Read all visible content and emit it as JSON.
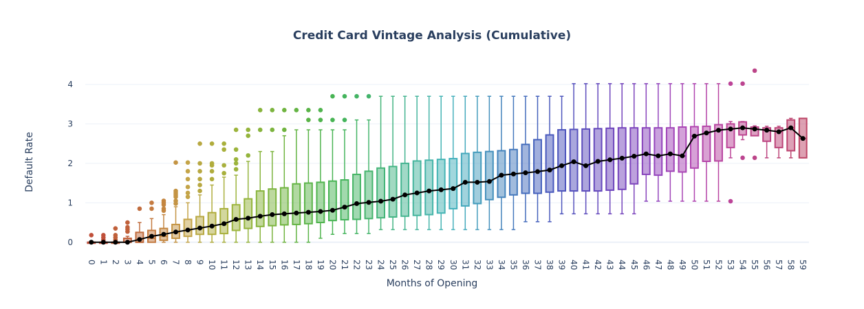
{
  "chart_data": {
    "type": "box",
    "title": "Credit Card Vintage Analysis (Cumulative)",
    "xlabel": "Months of Opening",
    "ylabel": "Default Rate",
    "ylim": [
      -0.3,
      4.4
    ],
    "yticks": [
      0,
      1,
      2,
      3,
      4
    ],
    "grid": true,
    "legend": "none",
    "categories": [
      "0",
      "1",
      "2",
      "3",
      "4",
      "5",
      "6",
      "7",
      "8",
      "9",
      "10",
      "11",
      "12",
      "13",
      "14",
      "15",
      "16",
      "17",
      "18",
      "19",
      "20",
      "21",
      "22",
      "23",
      "24",
      "25",
      "26",
      "27",
      "28",
      "29",
      "30",
      "31",
      "32",
      "33",
      "34",
      "35",
      "36",
      "37",
      "38",
      "39",
      "40",
      "41",
      "42",
      "43",
      "44",
      "45",
      "46",
      "47",
      "48",
      "49",
      "50",
      "51",
      "52",
      "53",
      "54",
      "55",
      "56",
      "57",
      "58",
      "59"
    ],
    "mean_series": {
      "color": "#000000",
      "values": [
        0,
        0,
        0,
        0,
        0.07,
        0.15,
        0.2,
        0.26,
        0.31,
        0.36,
        0.41,
        0.47,
        0.58,
        0.61,
        0.66,
        0.7,
        0.72,
        0.74,
        0.76,
        0.78,
        0.81,
        0.89,
        0.98,
        1.01,
        1.04,
        1.09,
        1.2,
        1.25,
        1.3,
        1.33,
        1.36,
        1.52,
        1.52,
        1.54,
        1.7,
        1.73,
        1.76,
        1.79,
        1.83,
        1.94,
        2.04,
        1.94,
        2.05,
        2.09,
        2.13,
        2.18,
        2.24,
        2.19,
        2.24,
        2.19,
        2.69,
        2.77,
        2.84,
        2.87,
        2.9,
        2.87,
        2.84,
        2.8,
        2.9,
        2.63
      ]
    },
    "boxes": [
      {
        "q1": 0,
        "median": 0,
        "q3": 0,
        "low": 0,
        "high": 0,
        "outliers": [
          0.18
        ],
        "color": "#c0503a"
      },
      {
        "q1": 0,
        "median": 0,
        "q3": 0,
        "low": 0,
        "high": 0,
        "outliers": [
          0.06,
          0.12,
          0.18
        ],
        "color": "#c0503a"
      },
      {
        "q1": 0,
        "median": 0,
        "q3": 0,
        "low": 0,
        "high": 0,
        "outliers": [
          0.06,
          0.12,
          0.18,
          0.35
        ],
        "color": "#c0603a"
      },
      {
        "q1": 0,
        "median": 0,
        "q3": 0.1,
        "low": 0,
        "high": 0.15,
        "outliers": [
          0.27,
          0.33,
          0.38,
          0.5
        ],
        "color": "#c0603a"
      },
      {
        "q1": 0,
        "median": 0,
        "q3": 0.25,
        "low": 0,
        "high": 0.5,
        "outliers": [
          0.85
        ],
        "color": "#c06c3e"
      },
      {
        "q1": 0,
        "median": 0.1,
        "q3": 0.3,
        "low": 0,
        "high": 0.6,
        "outliers": [
          0.85,
          1.0
        ],
        "color": "#c47a40"
      },
      {
        "q1": 0.05,
        "median": 0.15,
        "q3": 0.35,
        "low": 0,
        "high": 0.7,
        "outliers": [
          0.8,
          0.85,
          0.95,
          1.0,
          1.05
        ],
        "color": "#c48640"
      },
      {
        "q1": 0.1,
        "median": 0.25,
        "q3": 0.45,
        "low": 0,
        "high": 0.9,
        "outliers": [
          0.98,
          1.05,
          1.15,
          1.2,
          1.25,
          1.3,
          2.02
        ],
        "color": "#c49444"
      },
      {
        "q1": 0.15,
        "median": 0.3,
        "q3": 0.58,
        "low": 0,
        "high": 1.0,
        "outliers": [
          1.15,
          1.25,
          1.4,
          1.6,
          1.8,
          2.02
        ],
        "color": "#c4a448"
      },
      {
        "q1": 0.2,
        "median": 0.35,
        "q3": 0.65,
        "low": 0,
        "high": 1.2,
        "outliers": [
          1.3,
          1.45,
          1.6,
          1.8,
          2.0,
          2.5
        ],
        "color": "#b8a842"
      },
      {
        "q1": 0.2,
        "median": 0.4,
        "q3": 0.75,
        "low": 0,
        "high": 1.45,
        "outliers": [
          1.6,
          1.8,
          1.95,
          2.0,
          2.5
        ],
        "color": "#b0ac3c"
      },
      {
        "q1": 0.22,
        "median": 0.45,
        "q3": 0.85,
        "low": 0,
        "high": 1.65,
        "outliers": [
          1.75,
          1.95,
          2.35,
          2.5
        ],
        "color": "#a8b03c"
      },
      {
        "q1": 0.3,
        "median": 0.55,
        "q3": 0.95,
        "low": 0,
        "high": 1.7,
        "outliers": [
          1.85,
          2.0,
          2.1,
          2.35,
          2.85
        ],
        "color": "#9cb43c"
      },
      {
        "q1": 0.35,
        "median": 0.6,
        "q3": 1.1,
        "low": 0,
        "high": 2.05,
        "outliers": [
          2.2,
          2.7,
          2.85
        ],
        "color": "#94b43c"
      },
      {
        "q1": 0.4,
        "median": 0.65,
        "q3": 1.3,
        "low": 0,
        "high": 2.3,
        "outliers": [
          2.85,
          3.35
        ],
        "color": "#88b43c"
      },
      {
        "q1": 0.42,
        "median": 0.7,
        "q3": 1.35,
        "low": 0,
        "high": 2.3,
        "outliers": [
          2.85,
          3.35
        ],
        "color": "#7cb43e"
      },
      {
        "q1": 0.44,
        "median": 0.72,
        "q3": 1.38,
        "low": 0,
        "high": 2.7,
        "outliers": [
          2.85,
          3.35
        ],
        "color": "#70b440"
      },
      {
        "q1": 0.45,
        "median": 0.74,
        "q3": 1.48,
        "low": 0,
        "high": 2.85,
        "outliers": [
          3.35
        ],
        "color": "#64b444"
      },
      {
        "q1": 0.47,
        "median": 0.76,
        "q3": 1.5,
        "low": 0,
        "high": 2.85,
        "outliers": [
          3.1,
          3.35
        ],
        "color": "#5ab448"
      },
      {
        "q1": 0.5,
        "median": 0.78,
        "q3": 1.52,
        "low": 0.1,
        "high": 2.85,
        "outliers": [
          3.1,
          3.35
        ],
        "color": "#50b44e"
      },
      {
        "q1": 0.55,
        "median": 0.8,
        "q3": 1.55,
        "low": 0.2,
        "high": 2.85,
        "outliers": [
          3.1,
          3.7
        ],
        "color": "#48b454"
      },
      {
        "q1": 0.57,
        "median": 0.88,
        "q3": 1.58,
        "low": 0.22,
        "high": 2.85,
        "outliers": [
          3.1,
          3.7
        ],
        "color": "#44b45c"
      },
      {
        "q1": 0.58,
        "median": 0.96,
        "q3": 1.72,
        "low": 0.22,
        "high": 3.1,
        "outliers": [
          3.7
        ],
        "color": "#44b464"
      },
      {
        "q1": 0.6,
        "median": 1.0,
        "q3": 1.8,
        "low": 0.22,
        "high": 3.1,
        "outliers": [
          3.7
        ],
        "color": "#44b46c"
      },
      {
        "q1": 0.62,
        "median": 1.03,
        "q3": 1.88,
        "low": 0.32,
        "high": 3.7,
        "outliers": [],
        "color": "#44b478"
      },
      {
        "q1": 0.64,
        "median": 1.08,
        "q3": 1.92,
        "low": 0.32,
        "high": 3.7,
        "outliers": [],
        "color": "#44b484"
      },
      {
        "q1": 0.66,
        "median": 1.18,
        "q3": 2.0,
        "low": 0.32,
        "high": 3.7,
        "outliers": [],
        "color": "#44b490"
      },
      {
        "q1": 0.68,
        "median": 1.24,
        "q3": 2.06,
        "low": 0.32,
        "high": 3.7,
        "outliers": [],
        "color": "#44b49c"
      },
      {
        "q1": 0.7,
        "median": 1.3,
        "q3": 2.08,
        "low": 0.32,
        "high": 3.7,
        "outliers": [],
        "color": "#44b4a8"
      },
      {
        "q1": 0.74,
        "median": 1.32,
        "q3": 2.1,
        "low": 0.32,
        "high": 3.7,
        "outliers": [],
        "color": "#44b4b4"
      },
      {
        "q1": 0.85,
        "median": 1.35,
        "q3": 2.12,
        "low": 0.32,
        "high": 3.7,
        "outliers": [],
        "color": "#44b0bc"
      },
      {
        "q1": 0.92,
        "median": 1.5,
        "q3": 2.25,
        "low": 0.32,
        "high": 3.7,
        "outliers": [],
        "color": "#44a8bc"
      },
      {
        "q1": 0.98,
        "median": 1.52,
        "q3": 2.28,
        "low": 0.32,
        "high": 3.7,
        "outliers": [],
        "color": "#449cbc"
      },
      {
        "q1": 1.08,
        "median": 1.54,
        "q3": 2.3,
        "low": 0.32,
        "high": 3.7,
        "outliers": [],
        "color": "#4490bc"
      },
      {
        "q1": 1.14,
        "median": 1.7,
        "q3": 2.32,
        "low": 0.32,
        "high": 3.7,
        "outliers": [],
        "color": "#4484bc"
      },
      {
        "q1": 1.2,
        "median": 1.73,
        "q3": 2.35,
        "low": 0.32,
        "high": 3.7,
        "outliers": [],
        "color": "#4478bc"
      },
      {
        "q1": 1.24,
        "median": 1.76,
        "q3": 2.48,
        "low": 0.52,
        "high": 3.7,
        "outliers": [],
        "color": "#446cbc"
      },
      {
        "q1": 1.24,
        "median": 1.79,
        "q3": 2.6,
        "low": 0.52,
        "high": 3.7,
        "outliers": [],
        "color": "#4460bc"
      },
      {
        "q1": 1.27,
        "median": 1.83,
        "q3": 2.72,
        "low": 0.52,
        "high": 3.7,
        "outliers": [],
        "color": "#4858bc"
      },
      {
        "q1": 1.3,
        "median": 1.94,
        "q3": 2.85,
        "low": 0.72,
        "high": 3.7,
        "outliers": [],
        "color": "#4c54bc"
      },
      {
        "q1": 1.3,
        "median": 2.04,
        "q3": 2.86,
        "low": 0.72,
        "high": 4.02,
        "outliers": [],
        "color": "#5450bc"
      },
      {
        "q1": 1.3,
        "median": 1.94,
        "q3": 2.87,
        "low": 0.72,
        "high": 4.02,
        "outliers": [],
        "color": "#5c4cbc"
      },
      {
        "q1": 1.3,
        "median": 2.05,
        "q3": 2.88,
        "low": 0.72,
        "high": 4.02,
        "outliers": [],
        "color": "#6448bc"
      },
      {
        "q1": 1.32,
        "median": 2.09,
        "q3": 2.89,
        "low": 0.72,
        "high": 4.02,
        "outliers": [],
        "color": "#6c44bc"
      },
      {
        "q1": 1.34,
        "median": 2.13,
        "q3": 2.9,
        "low": 0.72,
        "high": 4.02,
        "outliers": [],
        "color": "#7444bc"
      },
      {
        "q1": 1.48,
        "median": 2.18,
        "q3": 2.9,
        "low": 0.72,
        "high": 4.02,
        "outliers": [],
        "color": "#7c44bc"
      },
      {
        "q1": 1.72,
        "median": 2.24,
        "q3": 2.9,
        "low": 1.04,
        "high": 4.02,
        "outliers": [],
        "color": "#8844bc"
      },
      {
        "q1": 1.7,
        "median": 2.19,
        "q3": 2.9,
        "low": 1.04,
        "high": 4.02,
        "outliers": [],
        "color": "#9444bc"
      },
      {
        "q1": 1.8,
        "median": 2.24,
        "q3": 2.9,
        "low": 1.04,
        "high": 4.02,
        "outliers": [],
        "color": "#a044b8"
      },
      {
        "q1": 1.78,
        "median": 2.19,
        "q3": 2.92,
        "low": 1.04,
        "high": 4.02,
        "outliers": [],
        "color": "#a844b4"
      },
      {
        "q1": 1.88,
        "median": 2.69,
        "q3": 2.93,
        "low": 1.04,
        "high": 4.02,
        "outliers": [],
        "color": "#b044b0"
      },
      {
        "q1": 2.05,
        "median": 2.77,
        "q3": 2.94,
        "low": 1.04,
        "high": 4.02,
        "outliers": [],
        "color": "#b444a8"
      },
      {
        "q1": 2.06,
        "median": 2.84,
        "q3": 2.98,
        "low": 1.04,
        "high": 4.02,
        "outliers": [],
        "color": "#b844a0"
      },
      {
        "q1": 2.4,
        "median": 2.87,
        "q3": 3.0,
        "low": 2.14,
        "high": 3.06,
        "outliers": [
          1.04,
          4.02
        ],
        "color": "#bc4498"
      },
      {
        "q1": 2.72,
        "median": 2.9,
        "q3": 3.05,
        "low": 2.6,
        "high": 3.06,
        "outliers": [
          2.14,
          4.02
        ],
        "color": "#bc4490"
      },
      {
        "q1": 2.7,
        "median": 2.87,
        "q3": 2.92,
        "low": 2.7,
        "high": 2.95,
        "outliers": [
          2.14,
          4.35
        ],
        "color": "#bc4488"
      },
      {
        "q1": 2.56,
        "median": 2.84,
        "q3": 2.9,
        "low": 2.14,
        "high": 2.94,
        "outliers": [],
        "color": "#bc4480"
      },
      {
        "q1": 2.4,
        "median": 2.8,
        "q3": 2.9,
        "low": 2.14,
        "high": 2.94,
        "outliers": [],
        "color": "#bc4478"
      },
      {
        "q1": 2.32,
        "median": 2.9,
        "q3": 3.1,
        "low": 2.14,
        "high": 3.14,
        "outliers": [],
        "color": "#bc4470"
      },
      {
        "q1": 2.14,
        "median": 2.63,
        "q3": 3.14,
        "low": 2.14,
        "high": 3.14,
        "outliers": [],
        "color": "#bc4466"
      }
    ]
  }
}
